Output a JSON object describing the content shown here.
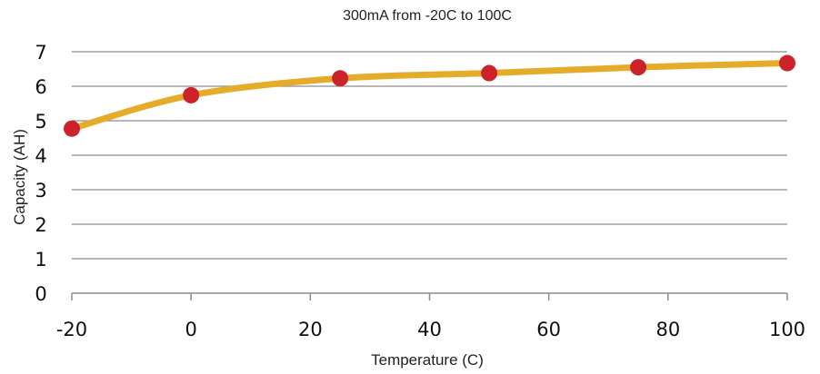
{
  "chart_data": {
    "type": "line",
    "subtitle": "300mA from -20C to 100C",
    "xlabel": "Temperature (C)",
    "ylabel": "Capacity (AH)",
    "x": [
      -20,
      0,
      25,
      50,
      75,
      100
    ],
    "series": [
      {
        "values": [
          4.77,
          5.74,
          6.23,
          6.38,
          6.55,
          6.67
        ]
      }
    ],
    "xlim": [
      -20,
      100
    ],
    "ylim": [
      0,
      7
    ],
    "xticks": [
      "-20",
      "0",
      "20",
      "40",
      "60",
      "80",
      "100"
    ],
    "yticks": [
      "0",
      "1",
      "2",
      "3",
      "4",
      "5",
      "6",
      "7"
    ],
    "grid": "horizontal",
    "line_color": "#E5AC2A",
    "marker_color": "#CC2229",
    "grid_color": "#8C8C8C"
  }
}
